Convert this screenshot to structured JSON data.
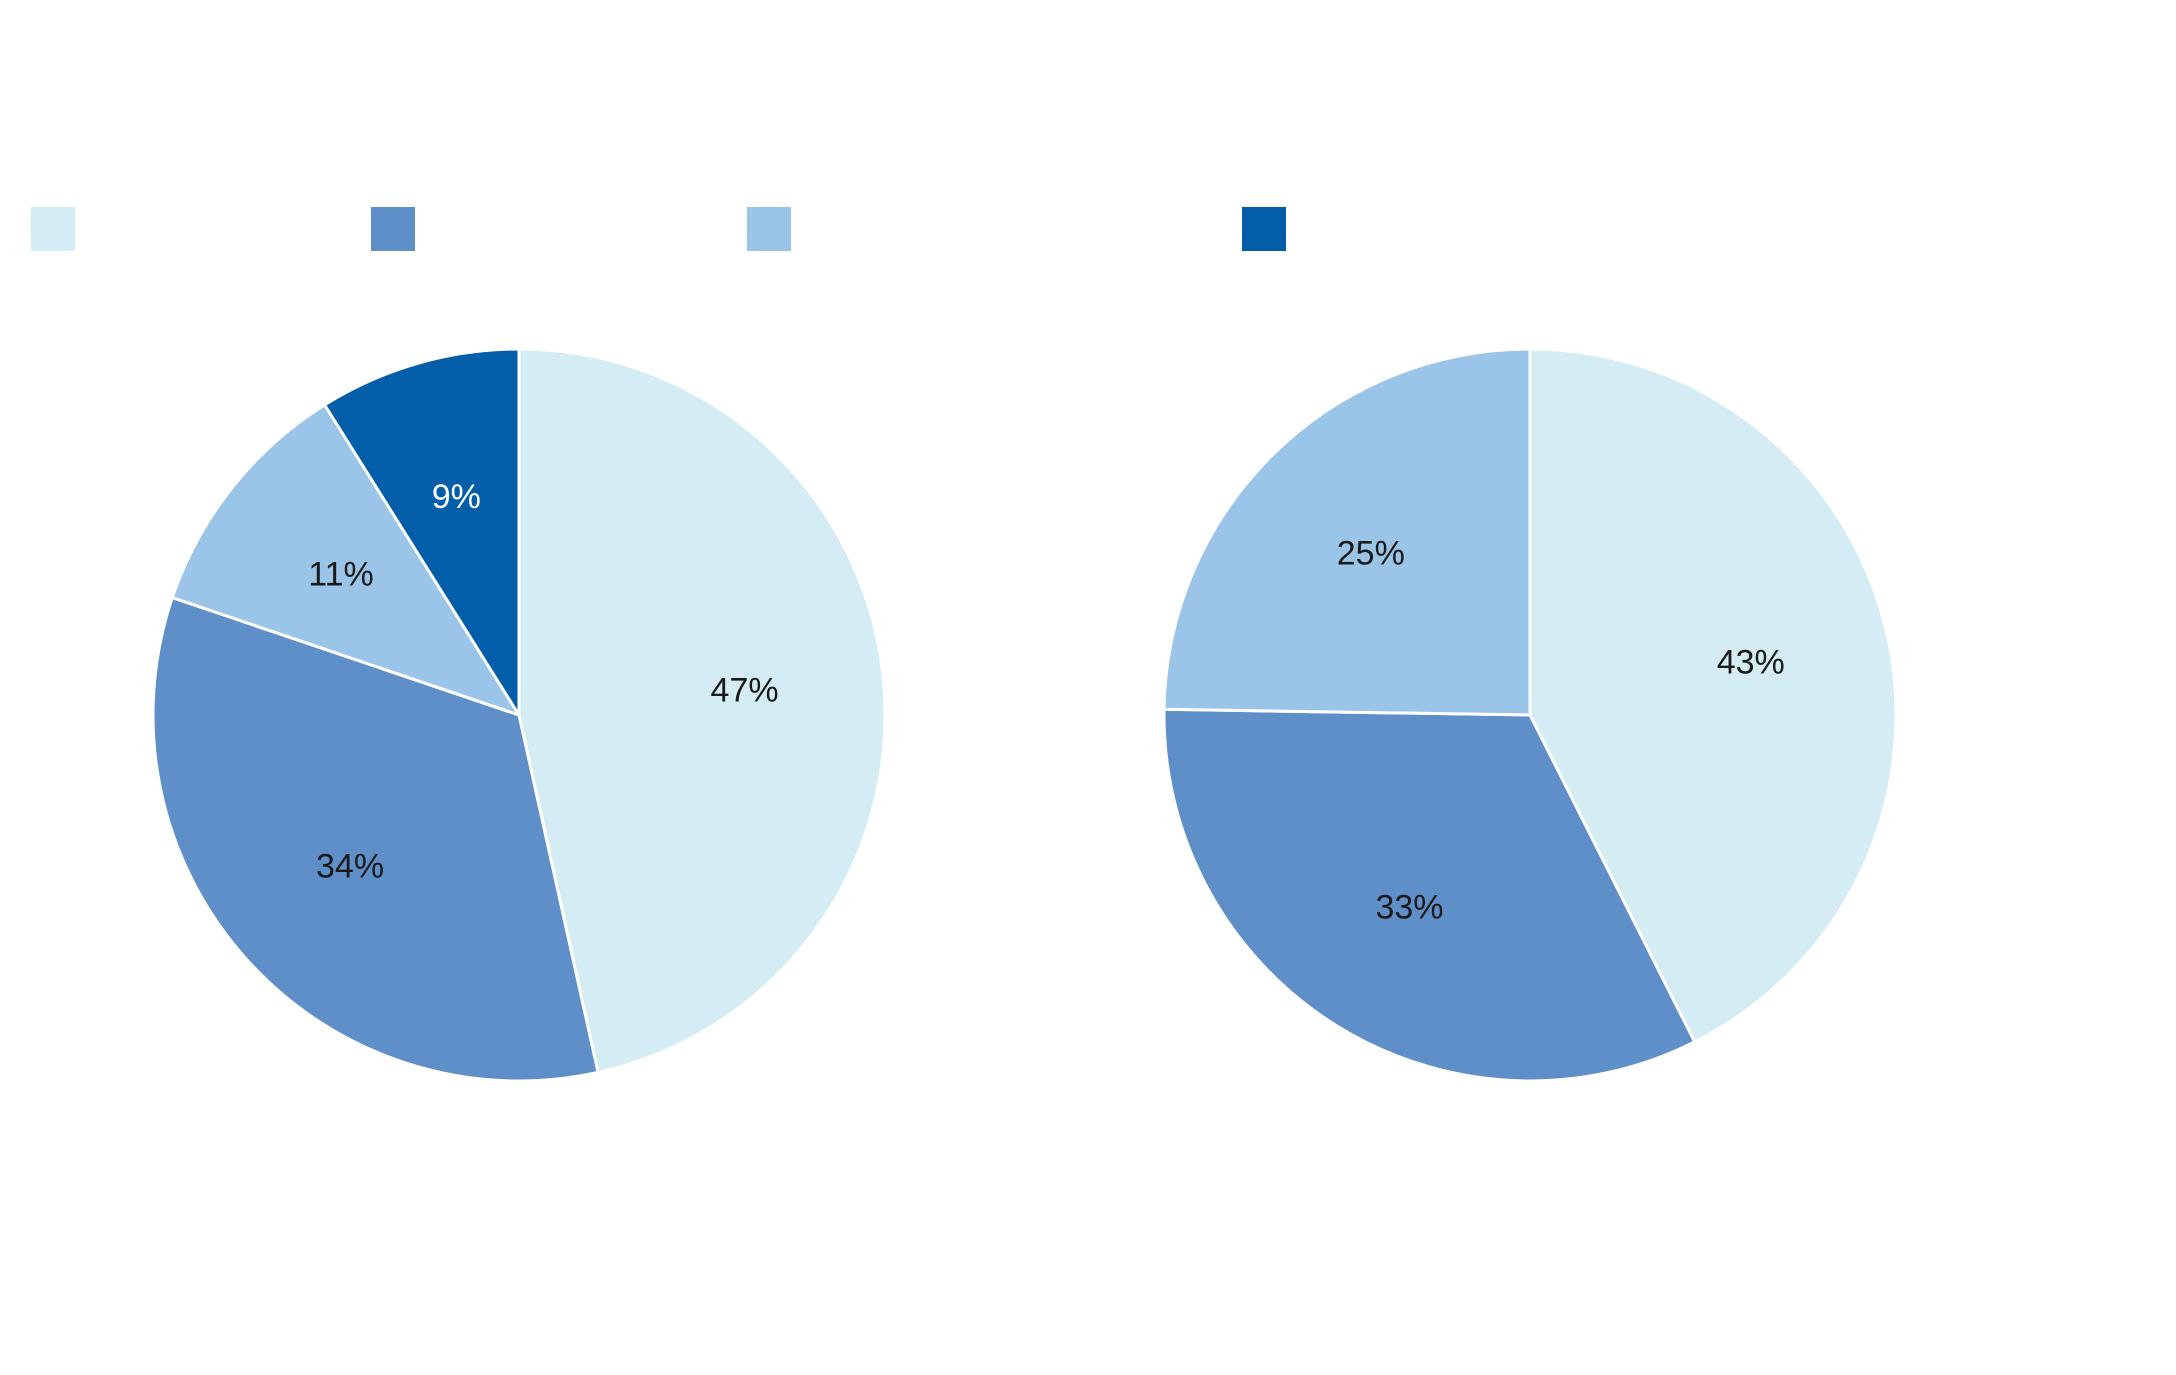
{
  "legend": {
    "swatch_colors": [
      "#d4ecf3",
      "#5f8fc9",
      "#9ac4e8",
      "#025ea9"
    ]
  },
  "chart_data": [
    {
      "type": "pie",
      "title": "",
      "slices": [
        {
          "value": 47,
          "label": "47%",
          "color": "#d4ecf3",
          "label_color": "#1a1a1a"
        },
        {
          "value": 34,
          "label": "34%",
          "color": "#5f8fc9",
          "label_color": "#1a1a1a"
        },
        {
          "value": 11,
          "label": "11%",
          "color": "#9ac4e8",
          "label_color": "#1a1a1a"
        },
        {
          "value": 9,
          "label": "9%",
          "color": "#025ea9",
          "label_color": "#ffffff"
        }
      ],
      "start_angle_deg": 0,
      "direction": "clockwise"
    },
    {
      "type": "pie",
      "title": "",
      "slices": [
        {
          "value": 43,
          "label": "43%",
          "color": "#d4ecf3",
          "label_color": "#1a1a1a"
        },
        {
          "value": 33,
          "label": "33%",
          "color": "#5f8fc9",
          "label_color": "#1a1a1a"
        },
        {
          "value": 25,
          "label": "25%",
          "color": "#9ac4e8",
          "label_color": "#1a1a1a"
        }
      ],
      "start_angle_deg": 0,
      "direction": "clockwise"
    }
  ]
}
